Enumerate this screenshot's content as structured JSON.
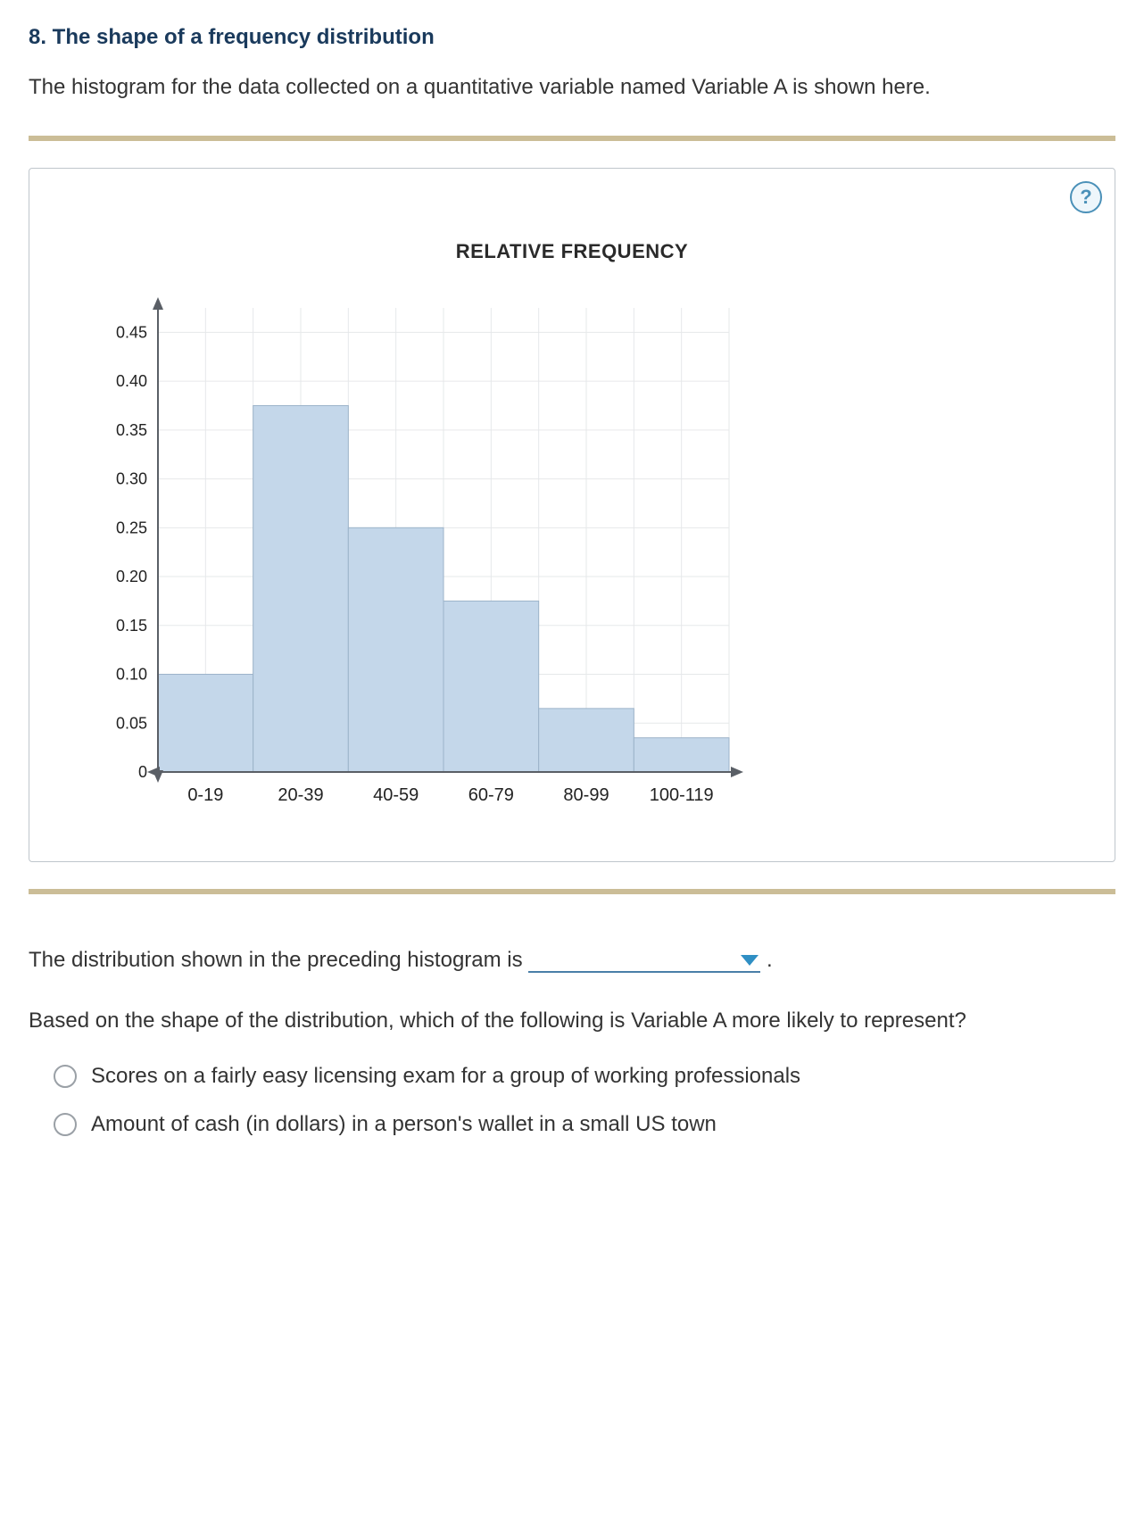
{
  "heading": "8. The shape of a frequency distribution",
  "intro": "The histogram for the data collected on a quantitative variable named Variable A is shown here.",
  "help_label": "?",
  "chart": {
    "type": "histogram",
    "title": "RELATIVE FREQUENCY",
    "categories": [
      "0-19",
      "20-39",
      "40-59",
      "60-79",
      "80-99",
      "100-119"
    ],
    "values": [
      0.1,
      0.375,
      0.25,
      0.175,
      0.065,
      0.035
    ],
    "ymin": 0,
    "ymax": 0.475,
    "ytick_step": 0.05,
    "yticks": [
      "0",
      "0.05",
      "0.10",
      "0.15",
      "0.20",
      "0.25",
      "0.30",
      "0.35",
      "0.40",
      "0.45"
    ],
    "bar_fill": "#c4d7ea",
    "bar_stroke": "#9cb3c9",
    "grid_color": "#e6e8ea",
    "axis_color": "#5a5f66",
    "background_color": "#ffffff",
    "label_fontsize": 18,
    "xlabel_fontsize": 20
  },
  "prompt1_prefix": "The distribution shown in the preceding histogram is ",
  "prompt1_suffix": " .",
  "dropdown_value": "",
  "q2": "Based on the shape of the distribution, which of the following is Variable A more likely to represent?",
  "options": [
    "Scores on a fairly easy licensing exam for a group of working professionals",
    "Amount of cash (in dollars) in a person's wallet in a small US town"
  ]
}
